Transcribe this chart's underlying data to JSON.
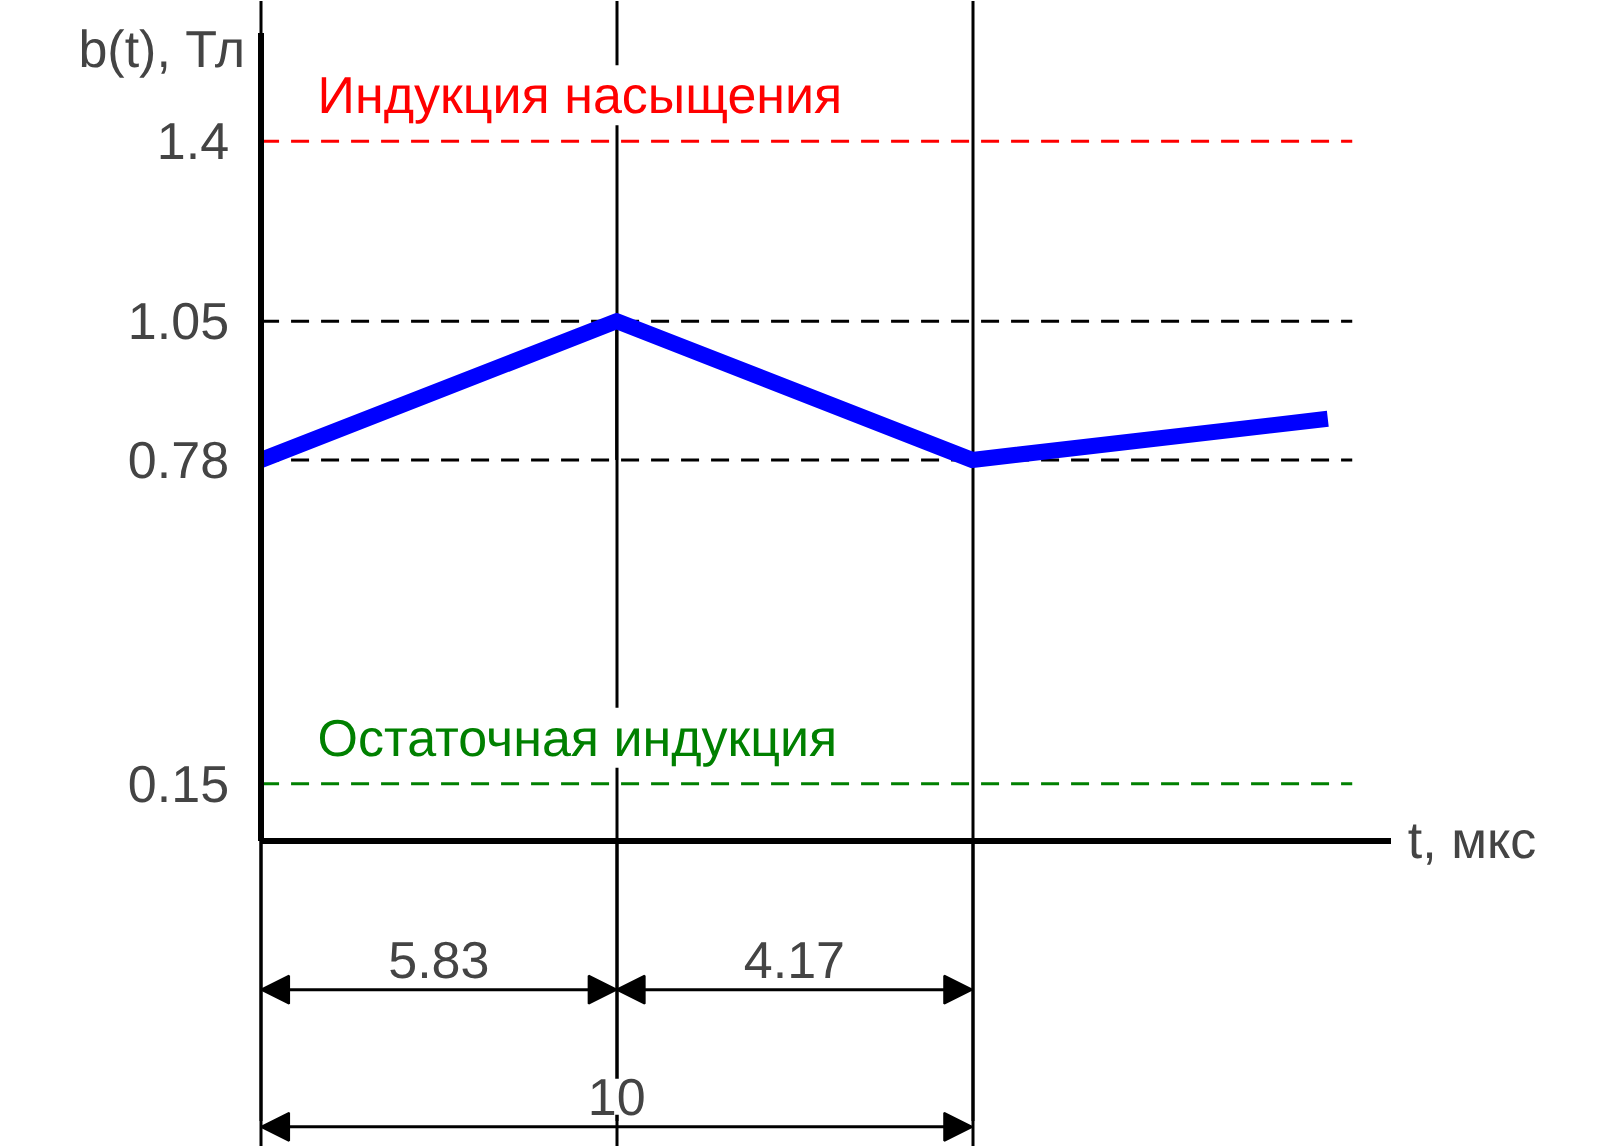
{
  "chart_data": {
    "type": "line",
    "ylabel": "b(t), Тл",
    "xlabel": "t, мкс",
    "categories": [
      null,
      null,
      null,
      null
    ],
    "series": [
      {
        "color": "#0000ff",
        "values": [
          0.78,
          1.05,
          0.78,
          0.86
        ]
      }
    ],
    "ylim": [
      0.04,
      1.61
    ],
    "yticks": [
      0.15,
      0.78,
      1.05,
      1.4
    ],
    "tick_labels": "y",
    "grid": "x",
    "marker": "none",
    "line_style": "solid",
    "ref_lines": [
      {
        "axis": "y",
        "value": 1.4,
        "label": "Индукция насыщения",
        "color": "#ff0000",
        "line_style": "dashed"
      },
      {
        "axis": "y",
        "value": 1.05,
        "color": "#000000",
        "line_style": "dashed"
      },
      {
        "axis": "y",
        "value": 0.78,
        "color": "#000000",
        "line_style": "dashed"
      },
      {
        "axis": "y",
        "value": 0.15,
        "label": "Остаточная индукция",
        "color": "#008000",
        "line_style": "dashed"
      }
    ],
    "annotations": [
      "5.83",
      "4.17",
      "10"
    ]
  }
}
